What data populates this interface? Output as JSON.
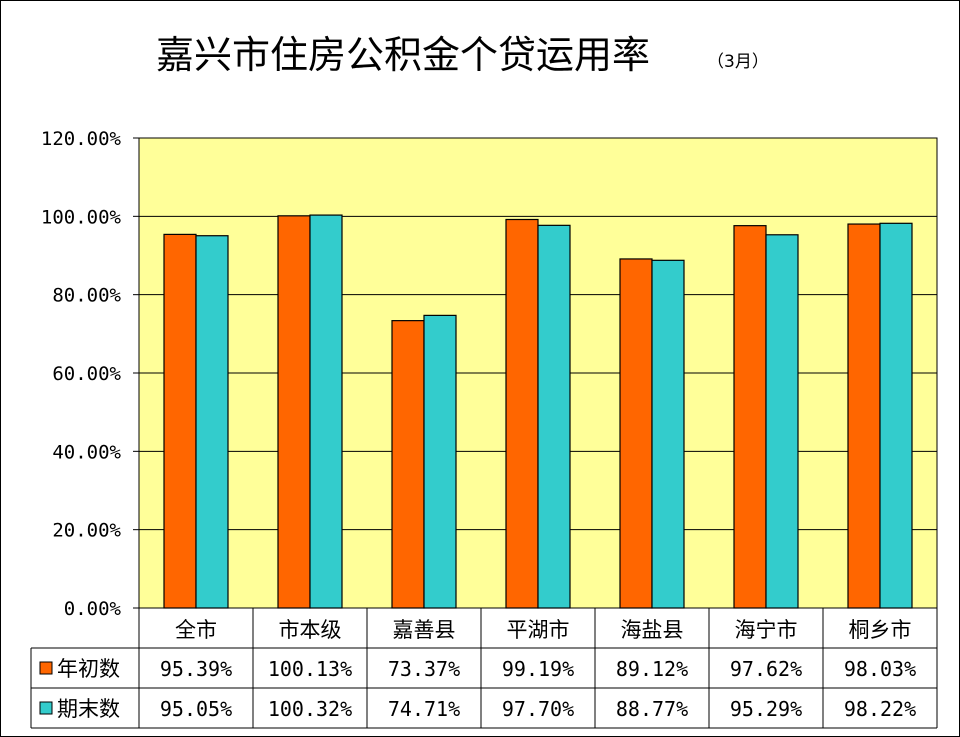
{
  "chart_data": {
    "type": "bar",
    "title": "嘉兴市住房公积金个贷运用率",
    "subtitle": "（3月）",
    "categories": [
      "全市",
      "市本级",
      "嘉善县",
      "平湖市",
      "海盐县",
      "海宁市",
      "桐乡市"
    ],
    "series": [
      {
        "name": "年初数",
        "color": "#FF6600",
        "values": [
          95.39,
          100.13,
          73.37,
          99.19,
          89.12,
          97.62,
          98.03
        ],
        "labels": [
          "95.39%",
          "100.13%",
          "73.37%",
          "99.19%",
          "89.12%",
          "97.62%",
          "98.03%"
        ]
      },
      {
        "name": "期末数",
        "color": "#33CCCC",
        "values": [
          95.05,
          100.32,
          74.71,
          97.7,
          88.77,
          95.29,
          98.22
        ],
        "labels": [
          "95.05%",
          "100.32%",
          "74.71%",
          "97.70%",
          "88.77%",
          "95.29%",
          "98.22%"
        ]
      }
    ],
    "yticks": [
      "0.00%",
      "20.00%",
      "40.00%",
      "60.00%",
      "80.00%",
      "100.00%",
      "120.00%"
    ],
    "ylim": [
      0,
      120
    ],
    "grid": true,
    "plot_background": "#FFFF99",
    "legend": "data-table-left",
    "data_table": true
  }
}
